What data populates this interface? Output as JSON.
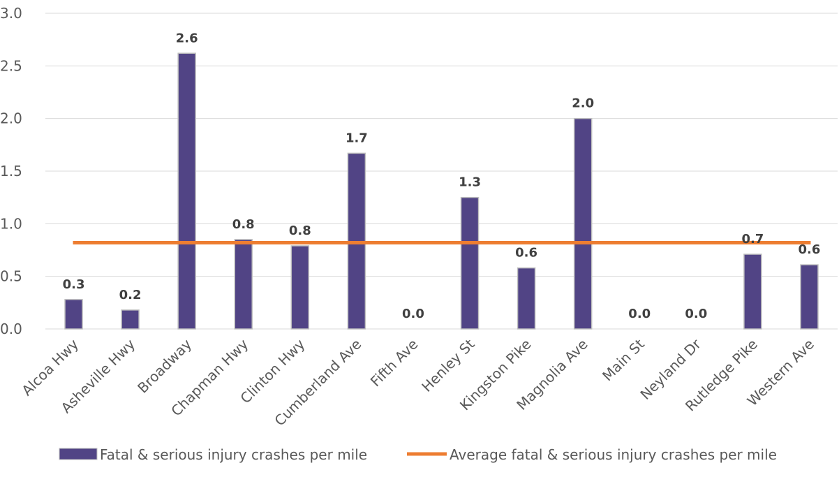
{
  "chart_data": {
    "type": "bar",
    "categories": [
      "Alcoa Hwy",
      "Asheville Hwy",
      "Broadway",
      "Chapman Hwy",
      "Clinton Hwy",
      "Cumberland Ave",
      "Fifth Ave",
      "Henley St",
      "Kingston Pike",
      "Magnolia Ave",
      "Main St",
      "Neyland Dr",
      "Rutledge Pike",
      "Western Ave"
    ],
    "series": [
      {
        "name": "Fatal & serious injury crashes per mile",
        "type": "bar",
        "color": "#514485",
        "values": [
          0.28,
          0.18,
          2.62,
          0.85,
          0.79,
          1.67,
          0.0,
          1.25,
          0.58,
          2.0,
          0.0,
          0.0,
          0.71,
          0.61
        ],
        "data_labels": [
          "0.3",
          "0.2",
          "2.6",
          "0.8",
          "0.8",
          "1.7",
          "0.0",
          "1.3",
          "0.6",
          "2.0",
          "0.0",
          "0.0",
          "0.7",
          "0.6"
        ]
      },
      {
        "name": "Average fatal & serious injury crashes per mile",
        "type": "line",
        "color": "#ED7D31",
        "value": 0.82
      }
    ],
    "y_ticks": [
      "0.0",
      "0.5",
      "1.0",
      "1.5",
      "2.0",
      "2.5",
      "3.0"
    ],
    "ylim": [
      0,
      3
    ],
    "grid": true,
    "legend_position": "bottom"
  }
}
